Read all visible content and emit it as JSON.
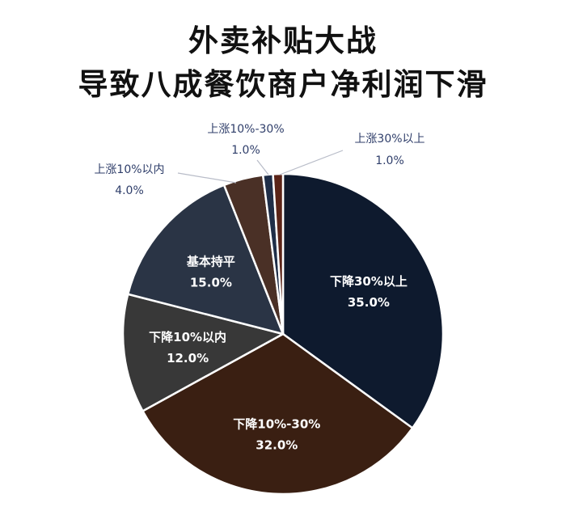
{
  "chart_data": {
    "type": "pie",
    "title": "外卖补贴大战",
    "subtitle": "导致八成餐饮商户净利润下滑",
    "start_angle_deg": 0,
    "direction": "clockwise",
    "slices": [
      {
        "label": "下降30%以上",
        "value": 35.0,
        "display": "35.0%",
        "color": "#0e1a2e",
        "label_position": "inside"
      },
      {
        "label": "下降10%-30%",
        "value": 32.0,
        "display": "32.0%",
        "color": "#3a1f12",
        "label_position": "inside"
      },
      {
        "label": "下降10%以内",
        "value": 12.0,
        "display": "12.0%",
        "color": "#383838",
        "label_position": "inside"
      },
      {
        "label": "基本持平",
        "value": 15.0,
        "display": "15.0%",
        "color": "#2a3445",
        "label_position": "inside"
      },
      {
        "label": "上涨10%以内",
        "value": 4.0,
        "display": "4.0%",
        "color": "#4a3026",
        "label_position": "outside"
      },
      {
        "label": "上涨10%-30%",
        "value": 1.0,
        "display": "1.0%",
        "color": "#1f2e48",
        "label_position": "outside"
      },
      {
        "label": "上涨30%以上",
        "value": 1.0,
        "display": "1.0%",
        "color": "#5a2418",
        "label_position": "outside"
      }
    ],
    "legend": "none",
    "colors": {
      "inside_text": "#ffffff",
      "outside_text": "#2f3e6a",
      "leader_line": "#b8bcc8",
      "slice_border": "#ffffff"
    }
  }
}
